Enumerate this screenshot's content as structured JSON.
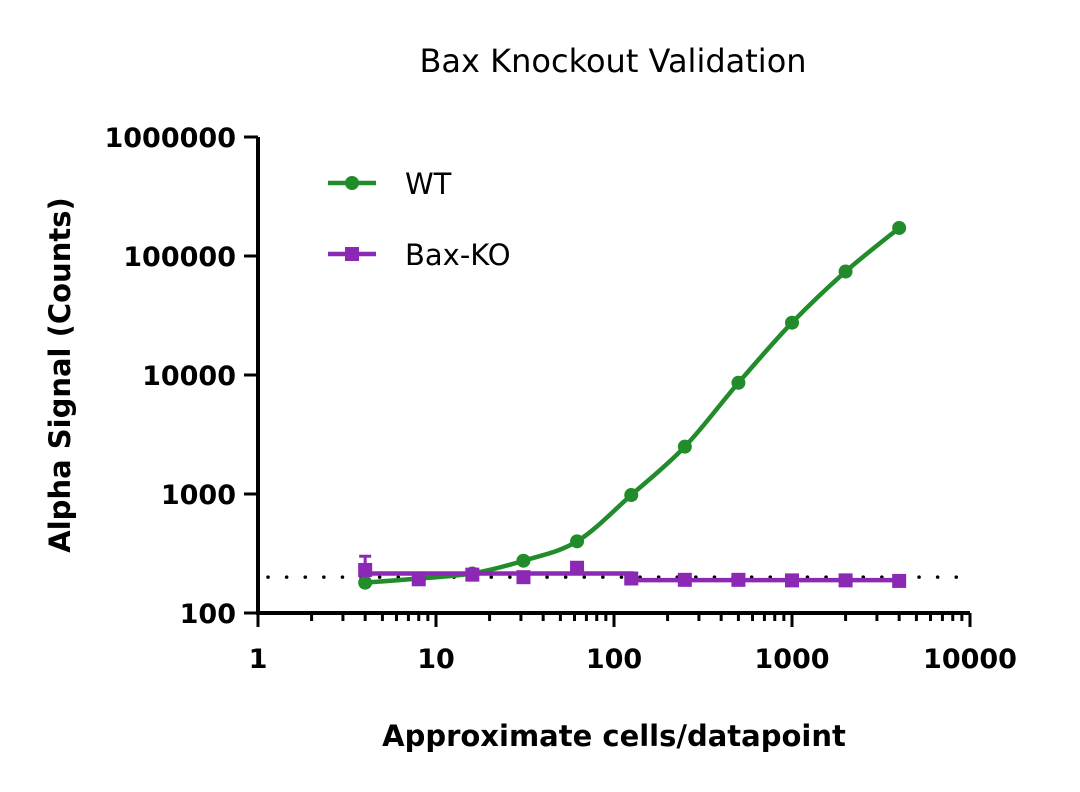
{
  "chart_data": {
    "type": "scatter",
    "title": "Bax Knockout Validation",
    "xlabel": "Approximate cells/datapoint",
    "ylabel": "Alpha Signal (Counts)",
    "xscale": "log",
    "yscale": "log",
    "xlim": [
      1,
      10000
    ],
    "ylim": [
      100,
      1000000
    ],
    "xticks": [
      "1",
      "10",
      "100",
      "1000",
      "10000"
    ],
    "yticks": [
      "100",
      "1000",
      "10000",
      "100000",
      "1000000"
    ],
    "grid": false,
    "legend_position": "top-left",
    "reference_line": {
      "y": 200,
      "style": "dotted",
      "color": "#000000"
    },
    "series": [
      {
        "name": "WT",
        "color": "#228B2A",
        "marker": "circle",
        "x": [
          4,
          8,
          16,
          31,
          62,
          125,
          250,
          500,
          1000,
          2000,
          4000
        ],
        "y": [
          180,
          195,
          215,
          275,
          400,
          980,
          2500,
          8600,
          27500,
          74000,
          172000
        ]
      },
      {
        "name": "Bax-KO",
        "color": "#8B28B4",
        "marker": "square",
        "x": [
          4,
          8,
          16,
          31,
          62,
          125,
          250,
          500,
          1000,
          2000,
          4000
        ],
        "y": [
          230,
          192,
          210,
          200,
          240,
          195,
          190,
          190,
          188,
          188,
          186
        ],
        "error_upper": [
          300,
          null,
          null,
          null,
          null,
          null,
          null,
          null,
          null,
          null,
          null
        ]
      }
    ]
  }
}
